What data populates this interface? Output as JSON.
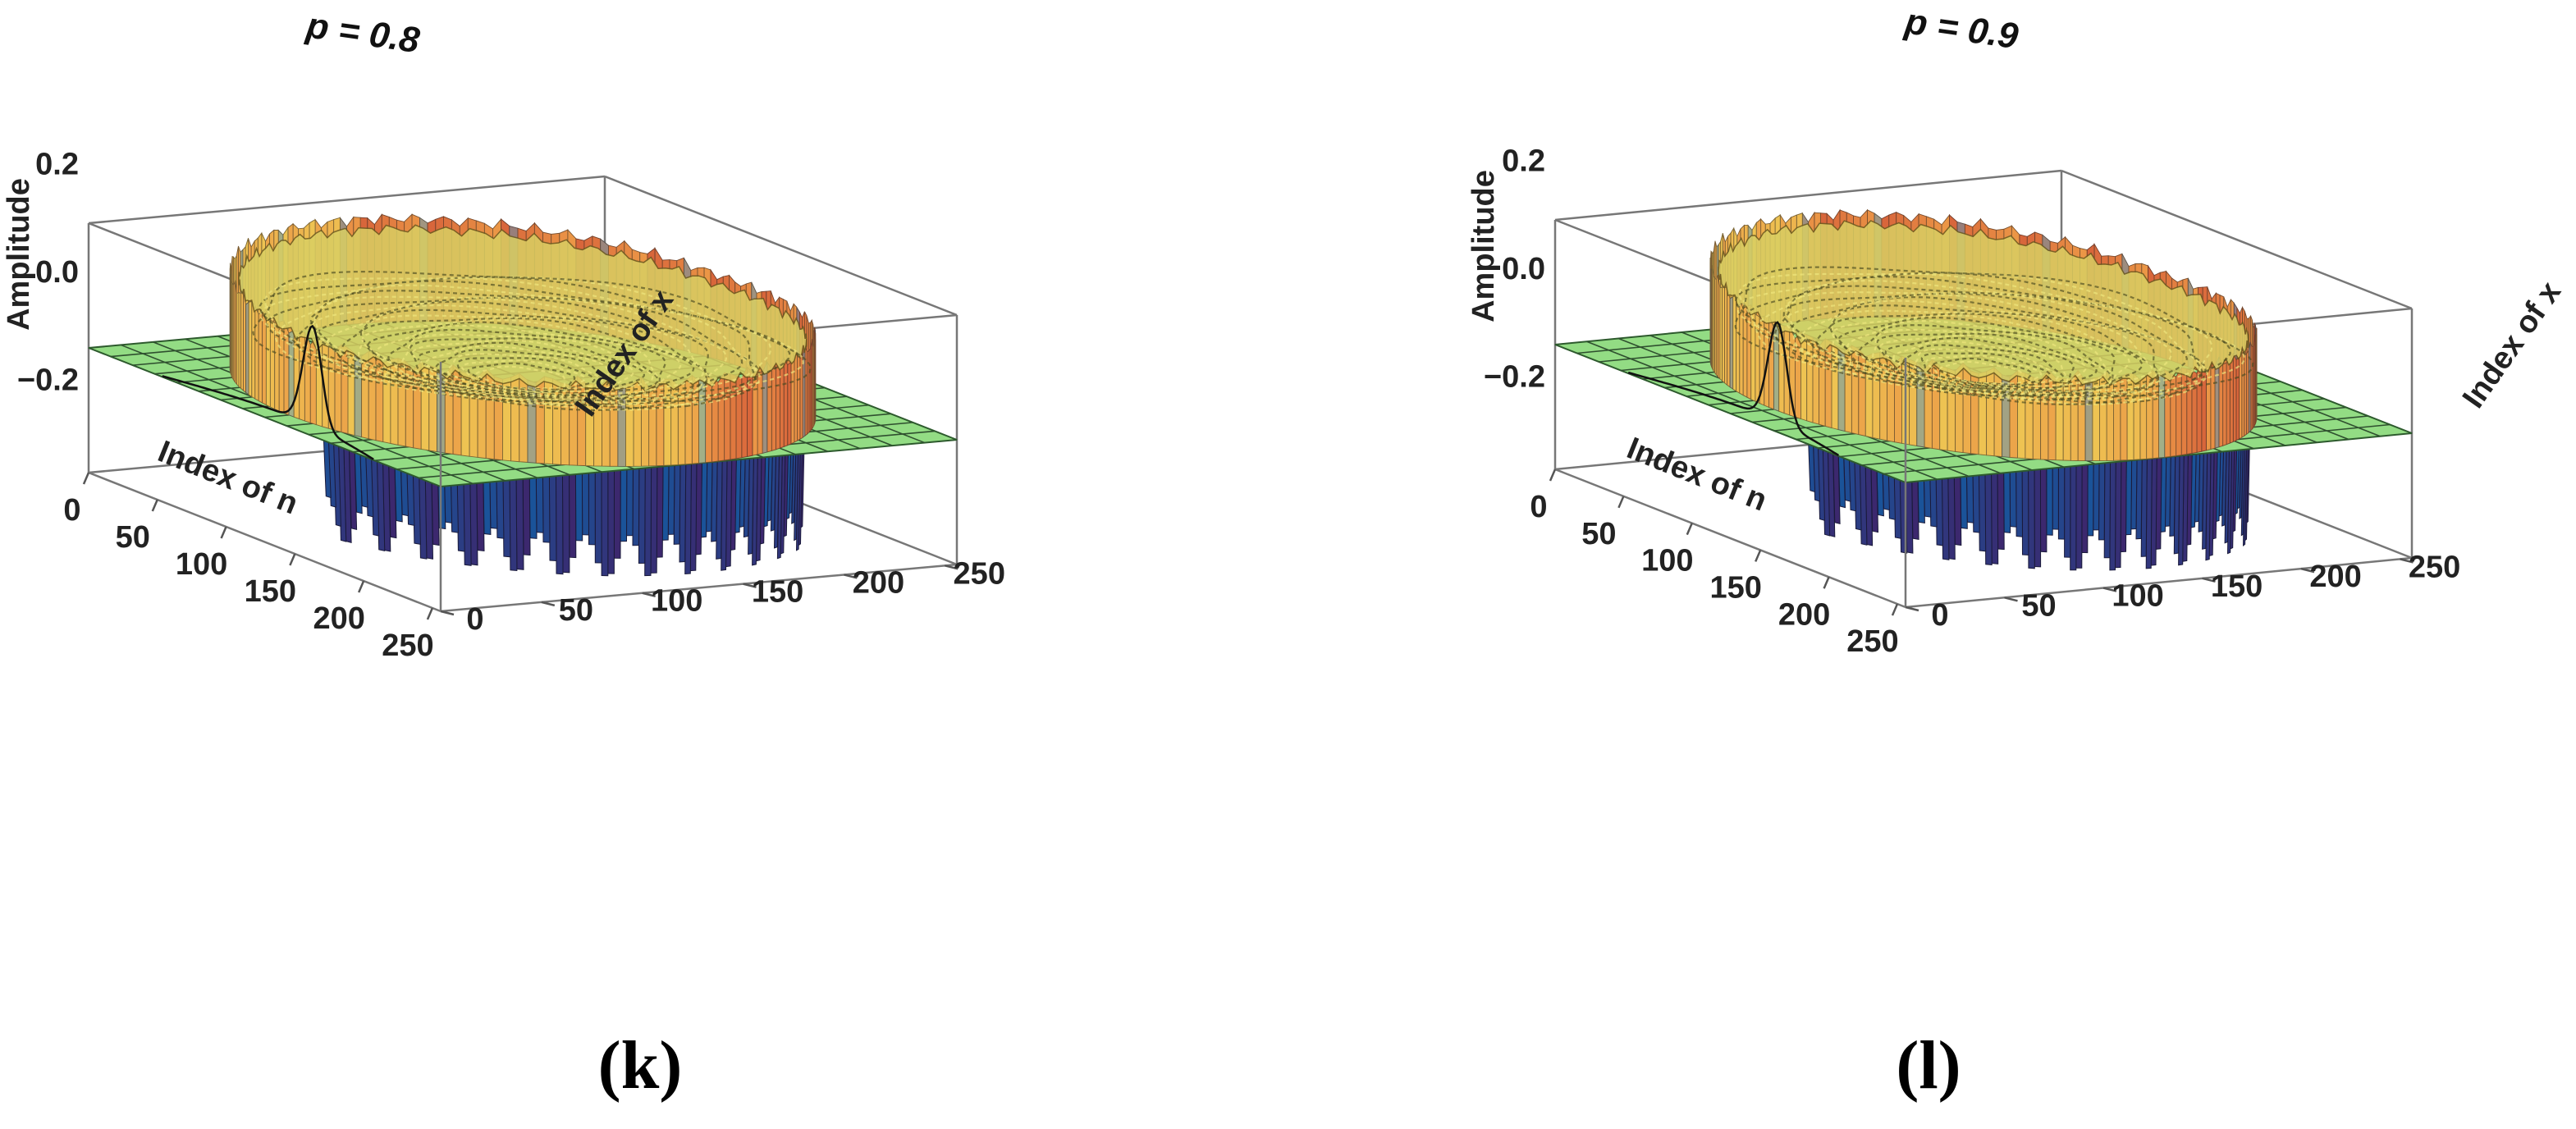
{
  "chart_data": [
    {
      "type": "surface3d",
      "title": "p = 0.8",
      "caption": "(k)",
      "param_p": 0.8,
      "xlabel": "Index of n",
      "ylabel": "Index of x",
      "zlabel": "Amplitude",
      "xlim": [
        0,
        256
      ],
      "ylim": [
        0,
        256
      ],
      "zlim": [
        -0.3,
        0.3
      ],
      "n_ticks": [
        "0",
        "50",
        "100",
        "150",
        "200",
        "250"
      ],
      "x_ticks": [
        "0",
        "50",
        "100",
        "150",
        "200",
        "250"
      ],
      "z_ticks": [
        "0.2",
        "0.0",
        "−0.2"
      ],
      "ellipse_semi_axis_n": 128,
      "ellipse_semi_axis_x": 116,
      "peak_amplitude": 0.28,
      "trough_amplitude": -0.3,
      "plane_color": "#93dc84",
      "grid": true
    },
    {
      "type": "surface3d",
      "title": "p = 0.9",
      "caption": "(l)",
      "param_p": 0.9,
      "xlabel": "Index of n",
      "ylabel": "Index of x",
      "zlabel": "Amplitude",
      "xlim": [
        0,
        256
      ],
      "ylim": [
        0,
        256
      ],
      "zlim": [
        -0.3,
        0.3
      ],
      "n_ticks": [
        "0",
        "50",
        "100",
        "150",
        "200",
        "250"
      ],
      "x_ticks": [
        "0",
        "50",
        "100",
        "150",
        "200",
        "250"
      ],
      "z_ticks": [
        "0.2",
        "0.0",
        "−0.2"
      ],
      "ellipse_semi_axis_n": 128,
      "ellipse_semi_axis_x": 106,
      "peak_amplitude": 0.28,
      "trough_amplitude": -0.3,
      "plane_color": "#93dc84",
      "grid": true
    }
  ]
}
